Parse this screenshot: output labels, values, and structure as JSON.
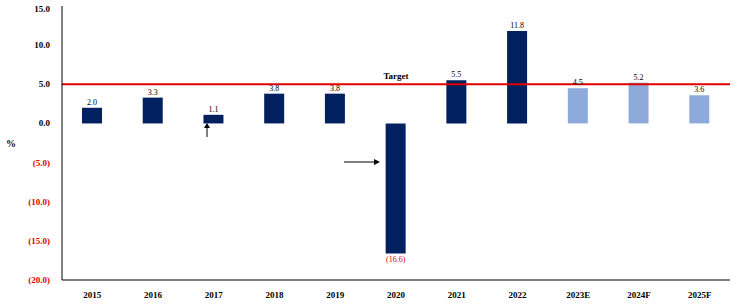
{
  "chart_data": {
    "type": "bar",
    "y_label": "%",
    "categories": [
      "2015",
      "2016",
      "2017",
      "2018",
      "2019",
      "2020",
      "2021",
      "2022",
      "2023E",
      "2024F",
      "2025F"
    ],
    "values": [
      2.0,
      3.3,
      1.1,
      3.8,
      3.8,
      -16.6,
      5.5,
      11.8,
      4.5,
      5.2,
      3.6
    ],
    "value_labels": [
      "2.0",
      "3.3",
      "1.1",
      "3.8",
      "3.8",
      "(16.6)",
      "5.5",
      "11.8",
      "4.5",
      "5.2",
      "3.6"
    ],
    "colors": [
      "#002060",
      "#002060",
      "#002060",
      "#002060",
      "#002060",
      "#002060",
      "#002060",
      "#002060",
      "#8eaadb",
      "#8eaadb",
      "#8eaadb"
    ],
    "target": {
      "value": 5.0,
      "label": "Target",
      "color": "#e00000"
    },
    "ylim": [
      -20,
      15
    ],
    "yticks": [
      {
        "value": -20,
        "label": "(20.0)"
      },
      {
        "value": -15,
        "label": "(15.0)"
      },
      {
        "value": -10,
        "label": "(10.0)"
      },
      {
        "value": -5,
        "label": "(5.0)"
      },
      {
        "value": 0,
        "label": "0.0"
      },
      {
        "value": 5,
        "label": "5.0"
      },
      {
        "value": 10,
        "label": "10.0"
      },
      {
        "value": 15,
        "label": "15.0"
      }
    ],
    "data_labels": true,
    "grid": false
  }
}
